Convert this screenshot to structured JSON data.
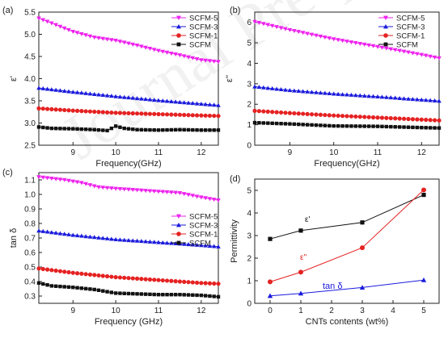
{
  "watermark": "Journal Pre-proof",
  "colors": {
    "magenta": "#ee22ee",
    "blue": "#1a1adc",
    "red": "#e52222",
    "black": "#111111"
  },
  "chart_data": [
    {
      "type": "line",
      "panel": "(a)",
      "xlabel": "Frequency(GHz)",
      "ylabel": "ε'",
      "xlim": [
        8.2,
        12.4
      ],
      "ylim": [
        2.5,
        5.5
      ],
      "xticks": [
        9,
        10,
        11,
        12
      ],
      "yticks": [
        2.5,
        3.0,
        3.5,
        4.0,
        4.5,
        5.0,
        5.5
      ],
      "ytick_labels": [
        "2.5",
        "3.0",
        "3.5",
        "4.0",
        "4.5",
        "5.0",
        "5.5"
      ],
      "legend_position": "top-right",
      "series": [
        {
          "name": "SCFM-5",
          "color": "#ee22ee",
          "marker": "triangle-down",
          "x": [
            8.2,
            8.5,
            9.0,
            9.5,
            10.0,
            10.5,
            11.0,
            11.5,
            12.0,
            12.4
          ],
          "y": [
            5.36,
            5.25,
            5.06,
            4.93,
            4.86,
            4.75,
            4.63,
            4.53,
            4.42,
            4.38
          ]
        },
        {
          "name": "SCFM-3",
          "color": "#1a1adc",
          "marker": "triangle-up",
          "x": [
            8.2,
            9.0,
            10.0,
            11.0,
            12.0,
            12.4
          ],
          "y": [
            3.79,
            3.7,
            3.6,
            3.51,
            3.43,
            3.4
          ]
        },
        {
          "name": "SCFM-1",
          "color": "#e52222",
          "marker": "circle",
          "x": [
            8.2,
            9.0,
            10.0,
            11.0,
            12.0,
            12.4
          ],
          "y": [
            3.33,
            3.28,
            3.23,
            3.2,
            3.17,
            3.16
          ]
        },
        {
          "name": "SCFM",
          "color": "#111111",
          "marker": "square",
          "x": [
            8.2,
            8.5,
            9.0,
            9.5,
            9.8,
            10.0,
            10.2,
            10.5,
            11.0,
            11.5,
            12.0,
            12.4
          ],
          "y": [
            2.91,
            2.88,
            2.87,
            2.85,
            2.83,
            2.93,
            2.88,
            2.85,
            2.84,
            2.85,
            2.84,
            2.84
          ]
        }
      ]
    },
    {
      "type": "line",
      "panel": "(b)",
      "xlabel": "Frequency(GHz)",
      "ylabel": "ε''",
      "xlim": [
        8.2,
        12.4
      ],
      "ylim": [
        0,
        6.5
      ],
      "xticks": [
        9,
        10,
        11,
        12
      ],
      "yticks": [
        0,
        1,
        2,
        3,
        4,
        5,
        6
      ],
      "ytick_labels": [
        "0",
        "1",
        "2",
        "3",
        "4",
        "5",
        "6"
      ],
      "legend_position": "top-right",
      "series": [
        {
          "name": "SCFM-5",
          "color": "#ee22ee",
          "marker": "triangle-down",
          "x": [
            8.2,
            9.0,
            10.0,
            11.0,
            12.0,
            12.4
          ],
          "y": [
            6.03,
            5.63,
            5.18,
            4.81,
            4.42,
            4.25
          ]
        },
        {
          "name": "SCFM-3",
          "color": "#1a1adc",
          "marker": "triangle-up",
          "x": [
            8.2,
            9.0,
            10.0,
            11.0,
            12.0,
            12.4
          ],
          "y": [
            2.86,
            2.68,
            2.51,
            2.37,
            2.22,
            2.16
          ]
        },
        {
          "name": "SCFM-1",
          "color": "#e52222",
          "marker": "circle",
          "x": [
            8.2,
            9.0,
            10.0,
            11.0,
            12.0,
            12.4
          ],
          "y": [
            1.68,
            1.57,
            1.45,
            1.35,
            1.25,
            1.21
          ]
        },
        {
          "name": "SCFM",
          "color": "#111111",
          "marker": "square",
          "x": [
            8.2,
            9.0,
            10.0,
            11.0,
            12.0,
            12.4
          ],
          "y": [
            1.1,
            1.04,
            0.94,
            0.92,
            0.86,
            0.84
          ]
        }
      ]
    },
    {
      "type": "line",
      "panel": "(c)",
      "xlabel": "Frequency (GHz)",
      "ylabel": "tan δ",
      "xlim": [
        8.2,
        12.4
      ],
      "ylim": [
        0.25,
        1.15
      ],
      "xticks": [
        9,
        10,
        11,
        12
      ],
      "yticks": [
        0.3,
        0.4,
        0.5,
        0.6,
        0.7,
        0.8,
        0.9,
        1.0,
        1.1
      ],
      "ytick_labels": [
        "0.3",
        "0.4",
        "0.5",
        "0.6",
        "0.7",
        "0.8",
        "0.9",
        "1.0",
        "1.1"
      ],
      "legend_position": "center-right",
      "series": [
        {
          "name": "SCFM-5",
          "color": "#ee22ee",
          "marker": "triangle-down",
          "x": [
            8.2,
            8.8,
            9.2,
            9.6,
            10.0,
            10.5,
            11.0,
            11.5,
            12.0,
            12.4
          ],
          "y": [
            1.12,
            1.1,
            1.08,
            1.05,
            1.04,
            1.03,
            1.02,
            1.01,
            0.98,
            0.96
          ]
        },
        {
          "name": "SCFM-3",
          "color": "#1a1adc",
          "marker": "triangle-up",
          "x": [
            8.2,
            9.0,
            10.0,
            11.0,
            12.0,
            12.4
          ],
          "y": [
            0.75,
            0.72,
            0.69,
            0.67,
            0.65,
            0.64
          ]
        },
        {
          "name": "SCFM-1",
          "color": "#e52222",
          "marker": "circle",
          "x": [
            8.2,
            9.0,
            10.0,
            11.0,
            12.0,
            12.4
          ],
          "y": [
            0.49,
            0.46,
            0.43,
            0.41,
            0.39,
            0.385
          ]
        },
        {
          "name": "SCFM",
          "color": "#111111",
          "marker": "square",
          "x": [
            8.2,
            8.5,
            9.0,
            9.5,
            10.0,
            10.5,
            11.0,
            11.5,
            12.0,
            12.4
          ],
          "y": [
            0.39,
            0.37,
            0.36,
            0.345,
            0.32,
            0.315,
            0.31,
            0.31,
            0.305,
            0.295
          ]
        }
      ]
    },
    {
      "type": "line",
      "panel": "(d)",
      "xlabel": "CNTs contents (wt%)",
      "ylabel": "Permittivity",
      "xlim": [
        -0.5,
        5.5
      ],
      "ylim": [
        0,
        5.5
      ],
      "xticks": [
        0,
        1,
        2,
        3,
        4,
        5
      ],
      "yticks": [
        0,
        1,
        2,
        3,
        4,
        5
      ],
      "ytick_labels": [
        "0",
        "1",
        "2",
        "3",
        "4",
        "5"
      ],
      "series": [
        {
          "name": "ε'",
          "color": "#111111",
          "marker": "square",
          "x": [
            0,
            1,
            3,
            5
          ],
          "y": [
            2.85,
            3.22,
            3.58,
            4.8
          ]
        },
        {
          "name": "ε''",
          "color": "#e52222",
          "marker": "circle",
          "x": [
            0,
            1,
            3,
            5
          ],
          "y": [
            0.95,
            1.38,
            2.46,
            5.02
          ]
        },
        {
          "name": "tan δ",
          "color": "#1a1adc",
          "marker": "triangle-up",
          "x": [
            0,
            1,
            3,
            5
          ],
          "y": [
            0.33,
            0.44,
            0.7,
            1.03
          ]
        }
      ]
    }
  ]
}
